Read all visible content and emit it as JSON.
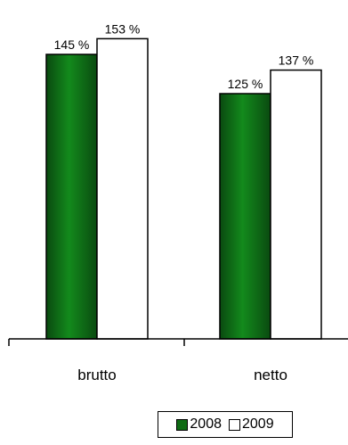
{
  "chart_data": {
    "type": "bar",
    "categories": [
      "brutto",
      "netto"
    ],
    "series": [
      {
        "name": "2008",
        "values": [
          145,
          125
        ],
        "labels": [
          "145 %",
          "125 %"
        ],
        "color": "#0f6b14"
      },
      {
        "name": "2009",
        "values": [
          153,
          137
        ],
        "labels": [
          "153 %",
          "137 %"
        ],
        "color": "#ffffff"
      }
    ],
    "ylim": [
      0,
      160
    ],
    "grid": false,
    "legend_position": "bottom-right",
    "title": "",
    "xlabel": "",
    "ylabel": ""
  }
}
